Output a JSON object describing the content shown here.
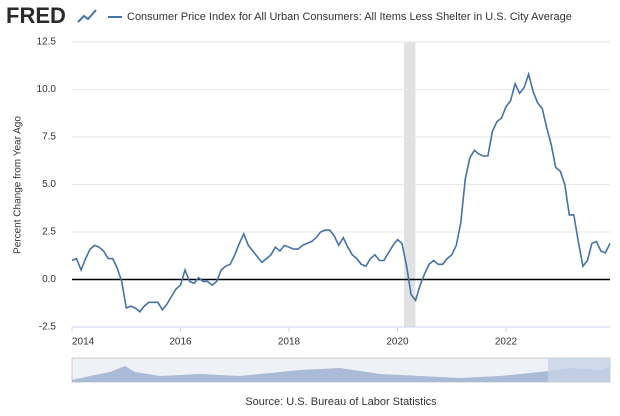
{
  "chart_data": {
    "type": "line",
    "logo": "FRED",
    "title": "Consumer Price Index for All Urban Consumers: All Items Less Shelter in U.S. City Average",
    "ylabel": "Percent Change from Year Ago",
    "source": "Source: U.S. Bureau of Labor Statistics",
    "x": [
      2014,
      2014.083,
      2014.167,
      2014.25,
      2014.333,
      2014.417,
      2014.5,
      2014.583,
      2014.667,
      2014.75,
      2014.833,
      2014.917,
      2015,
      2015.083,
      2015.167,
      2015.25,
      2015.333,
      2015.417,
      2015.5,
      2015.583,
      2015.667,
      2015.75,
      2015.833,
      2015.917,
      2016,
      2016.083,
      2016.167,
      2016.25,
      2016.333,
      2016.417,
      2016.5,
      2016.583,
      2016.667,
      2016.75,
      2016.833,
      2016.917,
      2017,
      2017.083,
      2017.167,
      2017.25,
      2017.333,
      2017.417,
      2017.5,
      2017.583,
      2017.667,
      2017.75,
      2017.833,
      2017.917,
      2018,
      2018.083,
      2018.167,
      2018.25,
      2018.333,
      2018.417,
      2018.5,
      2018.583,
      2018.667,
      2018.75,
      2018.833,
      2018.917,
      2019,
      2019.083,
      2019.167,
      2019.25,
      2019.333,
      2019.417,
      2019.5,
      2019.583,
      2019.667,
      2019.75,
      2019.833,
      2019.917,
      2020,
      2020.083,
      2020.167,
      2020.25,
      2020.333,
      2020.417,
      2020.5,
      2020.583,
      2020.667,
      2020.75,
      2020.833,
      2020.917,
      2021,
      2021.083,
      2021.167,
      2021.25,
      2021.333,
      2021.417,
      2021.5,
      2021.583,
      2021.667,
      2021.75,
      2021.833,
      2021.917,
      2022,
      2022.083,
      2022.167,
      2022.25,
      2022.333,
      2022.417,
      2022.5,
      2022.583,
      2022.667,
      2022.75,
      2022.833,
      2022.917,
      2023,
      2023.083,
      2023.167,
      2023.25,
      2023.333,
      2023.417,
      2023.5,
      2023.583,
      2023.667,
      2023.75,
      2023.833,
      2023.917
    ],
    "series": [
      {
        "name": "Consumer Price Index for All Urban Consumers: All Items Less Shelter in U.S. City Average",
        "color": "#4572a7",
        "values": [
          1.0,
          1.1,
          0.5,
          1.1,
          1.6,
          1.8,
          1.7,
          1.5,
          1.1,
          1.1,
          0.6,
          -0.1,
          -1.5,
          -1.4,
          -1.5,
          -1.7,
          -1.4,
          -1.2,
          -1.2,
          -1.2,
          -1.6,
          -1.3,
          -0.9,
          -0.5,
          -0.3,
          0.5,
          -0.1,
          -0.2,
          0.1,
          -0.1,
          -0.1,
          -0.3,
          -0.1,
          0.5,
          0.7,
          0.8,
          1.3,
          1.9,
          2.4,
          1.8,
          1.5,
          1.2,
          0.9,
          1.1,
          1.3,
          1.7,
          1.5,
          1.8,
          1.7,
          1.6,
          1.6,
          1.8,
          1.9,
          2.0,
          2.2,
          2.5,
          2.6,
          2.6,
          2.3,
          1.8,
          2.2,
          1.7,
          1.3,
          1.1,
          0.8,
          0.7,
          1.1,
          1.3,
          1.0,
          1.0,
          1.4,
          1.8,
          2.1,
          1.9,
          0.7,
          -0.8,
          -1.1,
          -0.3,
          0.3,
          0.8,
          1.0,
          0.8,
          0.8,
          1.1,
          1.3,
          1.8,
          3.0,
          5.3,
          6.4,
          6.8,
          6.6,
          6.5,
          6.5,
          7.8,
          8.3,
          8.5,
          9.1,
          9.4,
          10.3,
          9.8,
          10.1,
          10.8,
          9.9,
          9.3,
          9.0,
          8.0,
          7.1,
          5.9,
          5.7,
          5.0,
          3.4,
          3.4,
          2.0,
          0.7,
          1.0,
          1.9,
          2.0,
          1.5,
          1.4,
          1.9
        ]
      }
    ],
    "recession": [
      2020.12,
      2020.33
    ],
    "xlim": [
      2014,
      2023.917
    ],
    "xticks": [
      2014,
      2016,
      2018,
      2020,
      2022
    ],
    "ylim": [
      -2.5,
      12.5
    ],
    "yticks": [
      12.5,
      {
        "value": 10,
        "label": "10.0"
      },
      7.5,
      {
        "value": 5,
        "label": "5.0"
      },
      2.5,
      {
        "value": 0,
        "label": "0.0"
      },
      -2.5
    ],
    "grid": true
  }
}
